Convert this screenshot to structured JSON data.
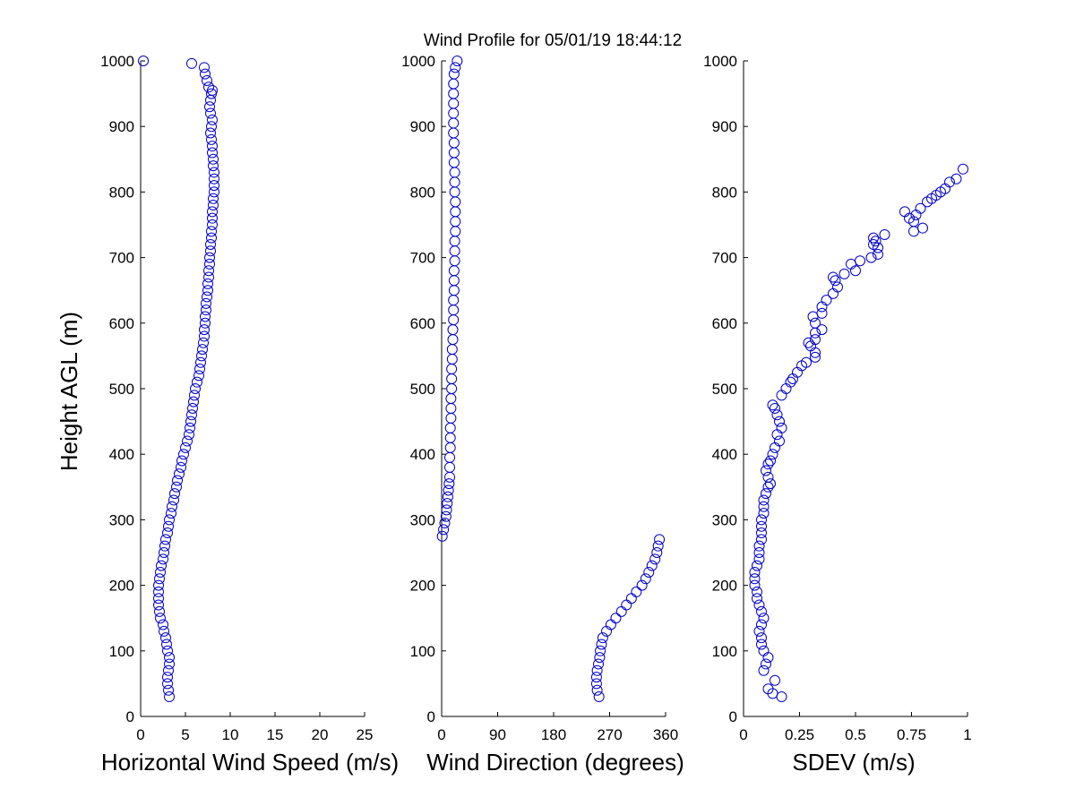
{
  "title": "Wind Profile for  05/01/19 18:44:12",
  "colors": {
    "marker": "#0000cc",
    "axis": "#000000",
    "background": "#ffffff"
  },
  "chart_data": [
    {
      "type": "scatter",
      "id": "speed",
      "xlabel": "Horizontal Wind Speed (m/s)",
      "ylabel": "Height AGL (m)",
      "xlim": [
        0,
        25
      ],
      "ylim": [
        0,
        1000
      ],
      "xticks": [
        0,
        5,
        10,
        15,
        20,
        25
      ],
      "xtick_labels": [
        "0",
        "5",
        "10",
        "15",
        "20",
        "25"
      ],
      "yticks": [
        0,
        100,
        200,
        300,
        400,
        500,
        600,
        700,
        800,
        900,
        1000
      ],
      "ytick_labels": [
        "0",
        "100",
        "200",
        "300",
        "400",
        "500",
        "600",
        "700",
        "800",
        "900",
        "1000"
      ],
      "points": [
        [
          3.2,
          30
        ],
        [
          3.1,
          40
        ],
        [
          3.0,
          50
        ],
        [
          3.0,
          60
        ],
        [
          3.1,
          70
        ],
        [
          3.2,
          80
        ],
        [
          3.2,
          90
        ],
        [
          3.0,
          100
        ],
        [
          2.9,
          110
        ],
        [
          2.8,
          120
        ],
        [
          2.6,
          130
        ],
        [
          2.5,
          140
        ],
        [
          2.2,
          150
        ],
        [
          2.1,
          160
        ],
        [
          2.0,
          170
        ],
        [
          2.0,
          180
        ],
        [
          2.0,
          190
        ],
        [
          2.0,
          200
        ],
        [
          2.1,
          210
        ],
        [
          2.2,
          220
        ],
        [
          2.3,
          230
        ],
        [
          2.5,
          240
        ],
        [
          2.6,
          250
        ],
        [
          2.7,
          260
        ],
        [
          2.8,
          270
        ],
        [
          3.0,
          280
        ],
        [
          3.1,
          290
        ],
        [
          3.2,
          300
        ],
        [
          3.4,
          310
        ],
        [
          3.5,
          320
        ],
        [
          3.7,
          330
        ],
        [
          3.8,
          340
        ],
        [
          4.0,
          350
        ],
        [
          4.1,
          360
        ],
        [
          4.3,
          370
        ],
        [
          4.5,
          380
        ],
        [
          4.6,
          390
        ],
        [
          4.8,
          400
        ],
        [
          5.0,
          410
        ],
        [
          5.2,
          420
        ],
        [
          5.4,
          430
        ],
        [
          5.5,
          440
        ],
        [
          5.6,
          450
        ],
        [
          5.7,
          460
        ],
        [
          5.8,
          470
        ],
        [
          5.9,
          480
        ],
        [
          6.0,
          490
        ],
        [
          6.1,
          500
        ],
        [
          6.3,
          510
        ],
        [
          6.5,
          520
        ],
        [
          6.6,
          530
        ],
        [
          6.7,
          540
        ],
        [
          6.8,
          550
        ],
        [
          6.9,
          560
        ],
        [
          7.0,
          570
        ],
        [
          7.1,
          580
        ],
        [
          7.1,
          590
        ],
        [
          7.2,
          600
        ],
        [
          7.2,
          610
        ],
        [
          7.3,
          620
        ],
        [
          7.3,
          630
        ],
        [
          7.4,
          640
        ],
        [
          7.5,
          650
        ],
        [
          7.5,
          660
        ],
        [
          7.6,
          670
        ],
        [
          7.6,
          680
        ],
        [
          7.7,
          690
        ],
        [
          7.7,
          700
        ],
        [
          7.8,
          710
        ],
        [
          7.8,
          720
        ],
        [
          7.9,
          730
        ],
        [
          7.9,
          740
        ],
        [
          8.0,
          750
        ],
        [
          8.0,
          760
        ],
        [
          8.0,
          770
        ],
        [
          8.1,
          780
        ],
        [
          8.1,
          790
        ],
        [
          8.2,
          800
        ],
        [
          8.2,
          810
        ],
        [
          8.2,
          820
        ],
        [
          8.2,
          830
        ],
        [
          8.1,
          840
        ],
        [
          8.1,
          850
        ],
        [
          8.0,
          860
        ],
        [
          8.0,
          870
        ],
        [
          7.9,
          880
        ],
        [
          7.8,
          890
        ],
        [
          7.9,
          900
        ],
        [
          8.0,
          910
        ],
        [
          7.8,
          920
        ],
        [
          7.7,
          930
        ],
        [
          7.8,
          940
        ],
        [
          7.9,
          950
        ],
        [
          8.0,
          955
        ],
        [
          7.6,
          960
        ],
        [
          7.4,
          970
        ],
        [
          7.2,
          980
        ],
        [
          7.1,
          990
        ],
        [
          5.7,
          996
        ],
        [
          0.3,
          1000
        ]
      ]
    },
    {
      "type": "scatter",
      "id": "direction",
      "xlabel": "Wind Direction (degrees)",
      "ylabel": "",
      "xlim": [
        0,
        360
      ],
      "ylim": [
        0,
        1000
      ],
      "xticks": [
        0,
        90,
        180,
        270,
        360
      ],
      "xtick_labels": [
        "0",
        "90",
        "180",
        "270",
        "360"
      ],
      "yticks": [
        0,
        100,
        200,
        300,
        400,
        500,
        600,
        700,
        800,
        900,
        1000
      ],
      "ytick_labels": [
        "0",
        "100",
        "200",
        "300",
        "400",
        "500",
        "600",
        "700",
        "800",
        "900",
        "1000"
      ],
      "points": [
        [
          253,
          30
        ],
        [
          250,
          40
        ],
        [
          249,
          50
        ],
        [
          249,
          60
        ],
        [
          250,
          70
        ],
        [
          252,
          80
        ],
        [
          254,
          90
        ],
        [
          255,
          100
        ],
        [
          257,
          110
        ],
        [
          259,
          120
        ],
        [
          265,
          130
        ],
        [
          272,
          140
        ],
        [
          280,
          150
        ],
        [
          289,
          160
        ],
        [
          297,
          170
        ],
        [
          305,
          180
        ],
        [
          313,
          190
        ],
        [
          322,
          200
        ],
        [
          328,
          210
        ],
        [
          333,
          220
        ],
        [
          338,
          230
        ],
        [
          343,
          240
        ],
        [
          346,
          250
        ],
        [
          348,
          260
        ],
        [
          350,
          270
        ],
        [
          1,
          275
        ],
        [
          3,
          285
        ],
        [
          5,
          295
        ],
        [
          7,
          305
        ],
        [
          8,
          315
        ],
        [
          9,
          325
        ],
        [
          10,
          335
        ],
        [
          11,
          345
        ],
        [
          12,
          355
        ],
        [
          13,
          365
        ],
        [
          13,
          380
        ],
        [
          13,
          395
        ],
        [
          14,
          410
        ],
        [
          14,
          425
        ],
        [
          14,
          440
        ],
        [
          15,
          455
        ],
        [
          15,
          470
        ],
        [
          15,
          485
        ],
        [
          16,
          500
        ],
        [
          16,
          515
        ],
        [
          16,
          530
        ],
        [
          17,
          545
        ],
        [
          17,
          560
        ],
        [
          18,
          575
        ],
        [
          18,
          590
        ],
        [
          19,
          605
        ],
        [
          19,
          620
        ],
        [
          19,
          635
        ],
        [
          20,
          650
        ],
        [
          20,
          665
        ],
        [
          20,
          680
        ],
        [
          21,
          695
        ],
        [
          21,
          710
        ],
        [
          21,
          725
        ],
        [
          22,
          740
        ],
        [
          22,
          755
        ],
        [
          22,
          770
        ],
        [
          22,
          785
        ],
        [
          21,
          800
        ],
        [
          21,
          815
        ],
        [
          21,
          830
        ],
        [
          20,
          845
        ],
        [
          20,
          860
        ],
        [
          20,
          875
        ],
        [
          19,
          890
        ],
        [
          19,
          905
        ],
        [
          19,
          920
        ],
        [
          19,
          935
        ],
        [
          19,
          950
        ],
        [
          19,
          965
        ],
        [
          20,
          980
        ],
        [
          22,
          990
        ],
        [
          25,
          1000
        ]
      ]
    },
    {
      "type": "scatter",
      "id": "sdev",
      "xlabel": "SDEV  (m/s)",
      "ylabel": "",
      "xlim": [
        0,
        1
      ],
      "ylim": [
        0,
        1000
      ],
      "xticks": [
        0,
        0.25,
        0.5,
        0.75,
        1
      ],
      "xtick_labels": [
        "0",
        "0.25",
        "0.5",
        "0.75",
        "1"
      ],
      "yticks": [
        0,
        100,
        200,
        300,
        400,
        500,
        600,
        700,
        800,
        900,
        1000
      ],
      "ytick_labels": [
        "0",
        "100",
        "200",
        "300",
        "400",
        "500",
        "600",
        "700",
        "800",
        "900",
        "1000"
      ],
      "points": [
        [
          0.17,
          30
        ],
        [
          0.13,
          35
        ],
        [
          0.11,
          42
        ],
        [
          0.14,
          55
        ],
        [
          0.09,
          70
        ],
        [
          0.1,
          80
        ],
        [
          0.11,
          90
        ],
        [
          0.09,
          100
        ],
        [
          0.08,
          110
        ],
        [
          0.08,
          120
        ],
        [
          0.07,
          130
        ],
        [
          0.08,
          140
        ],
        [
          0.09,
          150
        ],
        [
          0.08,
          160
        ],
        [
          0.07,
          170
        ],
        [
          0.06,
          180
        ],
        [
          0.06,
          190
        ],
        [
          0.05,
          200
        ],
        [
          0.05,
          210
        ],
        [
          0.05,
          220
        ],
        [
          0.06,
          230
        ],
        [
          0.07,
          240
        ],
        [
          0.07,
          250
        ],
        [
          0.07,
          260
        ],
        [
          0.08,
          270
        ],
        [
          0.08,
          280
        ],
        [
          0.08,
          290
        ],
        [
          0.08,
          300
        ],
        [
          0.09,
          310
        ],
        [
          0.09,
          320
        ],
        [
          0.09,
          330
        ],
        [
          0.1,
          340
        ],
        [
          0.11,
          350
        ],
        [
          0.12,
          355
        ],
        [
          0.11,
          365
        ],
        [
          0.1,
          375
        ],
        [
          0.11,
          385
        ],
        [
          0.12,
          390
        ],
        [
          0.13,
          400
        ],
        [
          0.14,
          410
        ],
        [
          0.16,
          420
        ],
        [
          0.15,
          430
        ],
        [
          0.17,
          440
        ],
        [
          0.16,
          450
        ],
        [
          0.15,
          460
        ],
        [
          0.14,
          470
        ],
        [
          0.13,
          475
        ],
        [
          0.17,
          490
        ],
        [
          0.19,
          500
        ],
        [
          0.21,
          510
        ],
        [
          0.22,
          515
        ],
        [
          0.24,
          525
        ],
        [
          0.26,
          535
        ],
        [
          0.28,
          540
        ],
        [
          0.32,
          548
        ],
        [
          0.32,
          555
        ],
        [
          0.3,
          565
        ],
        [
          0.29,
          570
        ],
        [
          0.32,
          575
        ],
        [
          0.32,
          585
        ],
        [
          0.35,
          590
        ],
        [
          0.32,
          600
        ],
        [
          0.31,
          610
        ],
        [
          0.35,
          615
        ],
        [
          0.35,
          625
        ],
        [
          0.37,
          635
        ],
        [
          0.4,
          645
        ],
        [
          0.42,
          655
        ],
        [
          0.41,
          665
        ],
        [
          0.4,
          670
        ],
        [
          0.45,
          675
        ],
        [
          0.5,
          680
        ],
        [
          0.48,
          690
        ],
        [
          0.52,
          695
        ],
        [
          0.57,
          700
        ],
        [
          0.6,
          705
        ],
        [
          0.6,
          715
        ],
        [
          0.58,
          720
        ],
        [
          0.59,
          725
        ],
        [
          0.58,
          730
        ],
        [
          0.63,
          735
        ],
        [
          0.76,
          740
        ],
        [
          0.8,
          745
        ],
        [
          0.76,
          755
        ],
        [
          0.74,
          760
        ],
        [
          0.77,
          765
        ],
        [
          0.72,
          770
        ],
        [
          0.79,
          775
        ],
        [
          0.82,
          785
        ],
        [
          0.84,
          790
        ],
        [
          0.86,
          795
        ],
        [
          0.88,
          800
        ],
        [
          0.9,
          805
        ],
        [
          0.92,
          815
        ],
        [
          0.95,
          820
        ],
        [
          0.98,
          835
        ]
      ]
    }
  ]
}
